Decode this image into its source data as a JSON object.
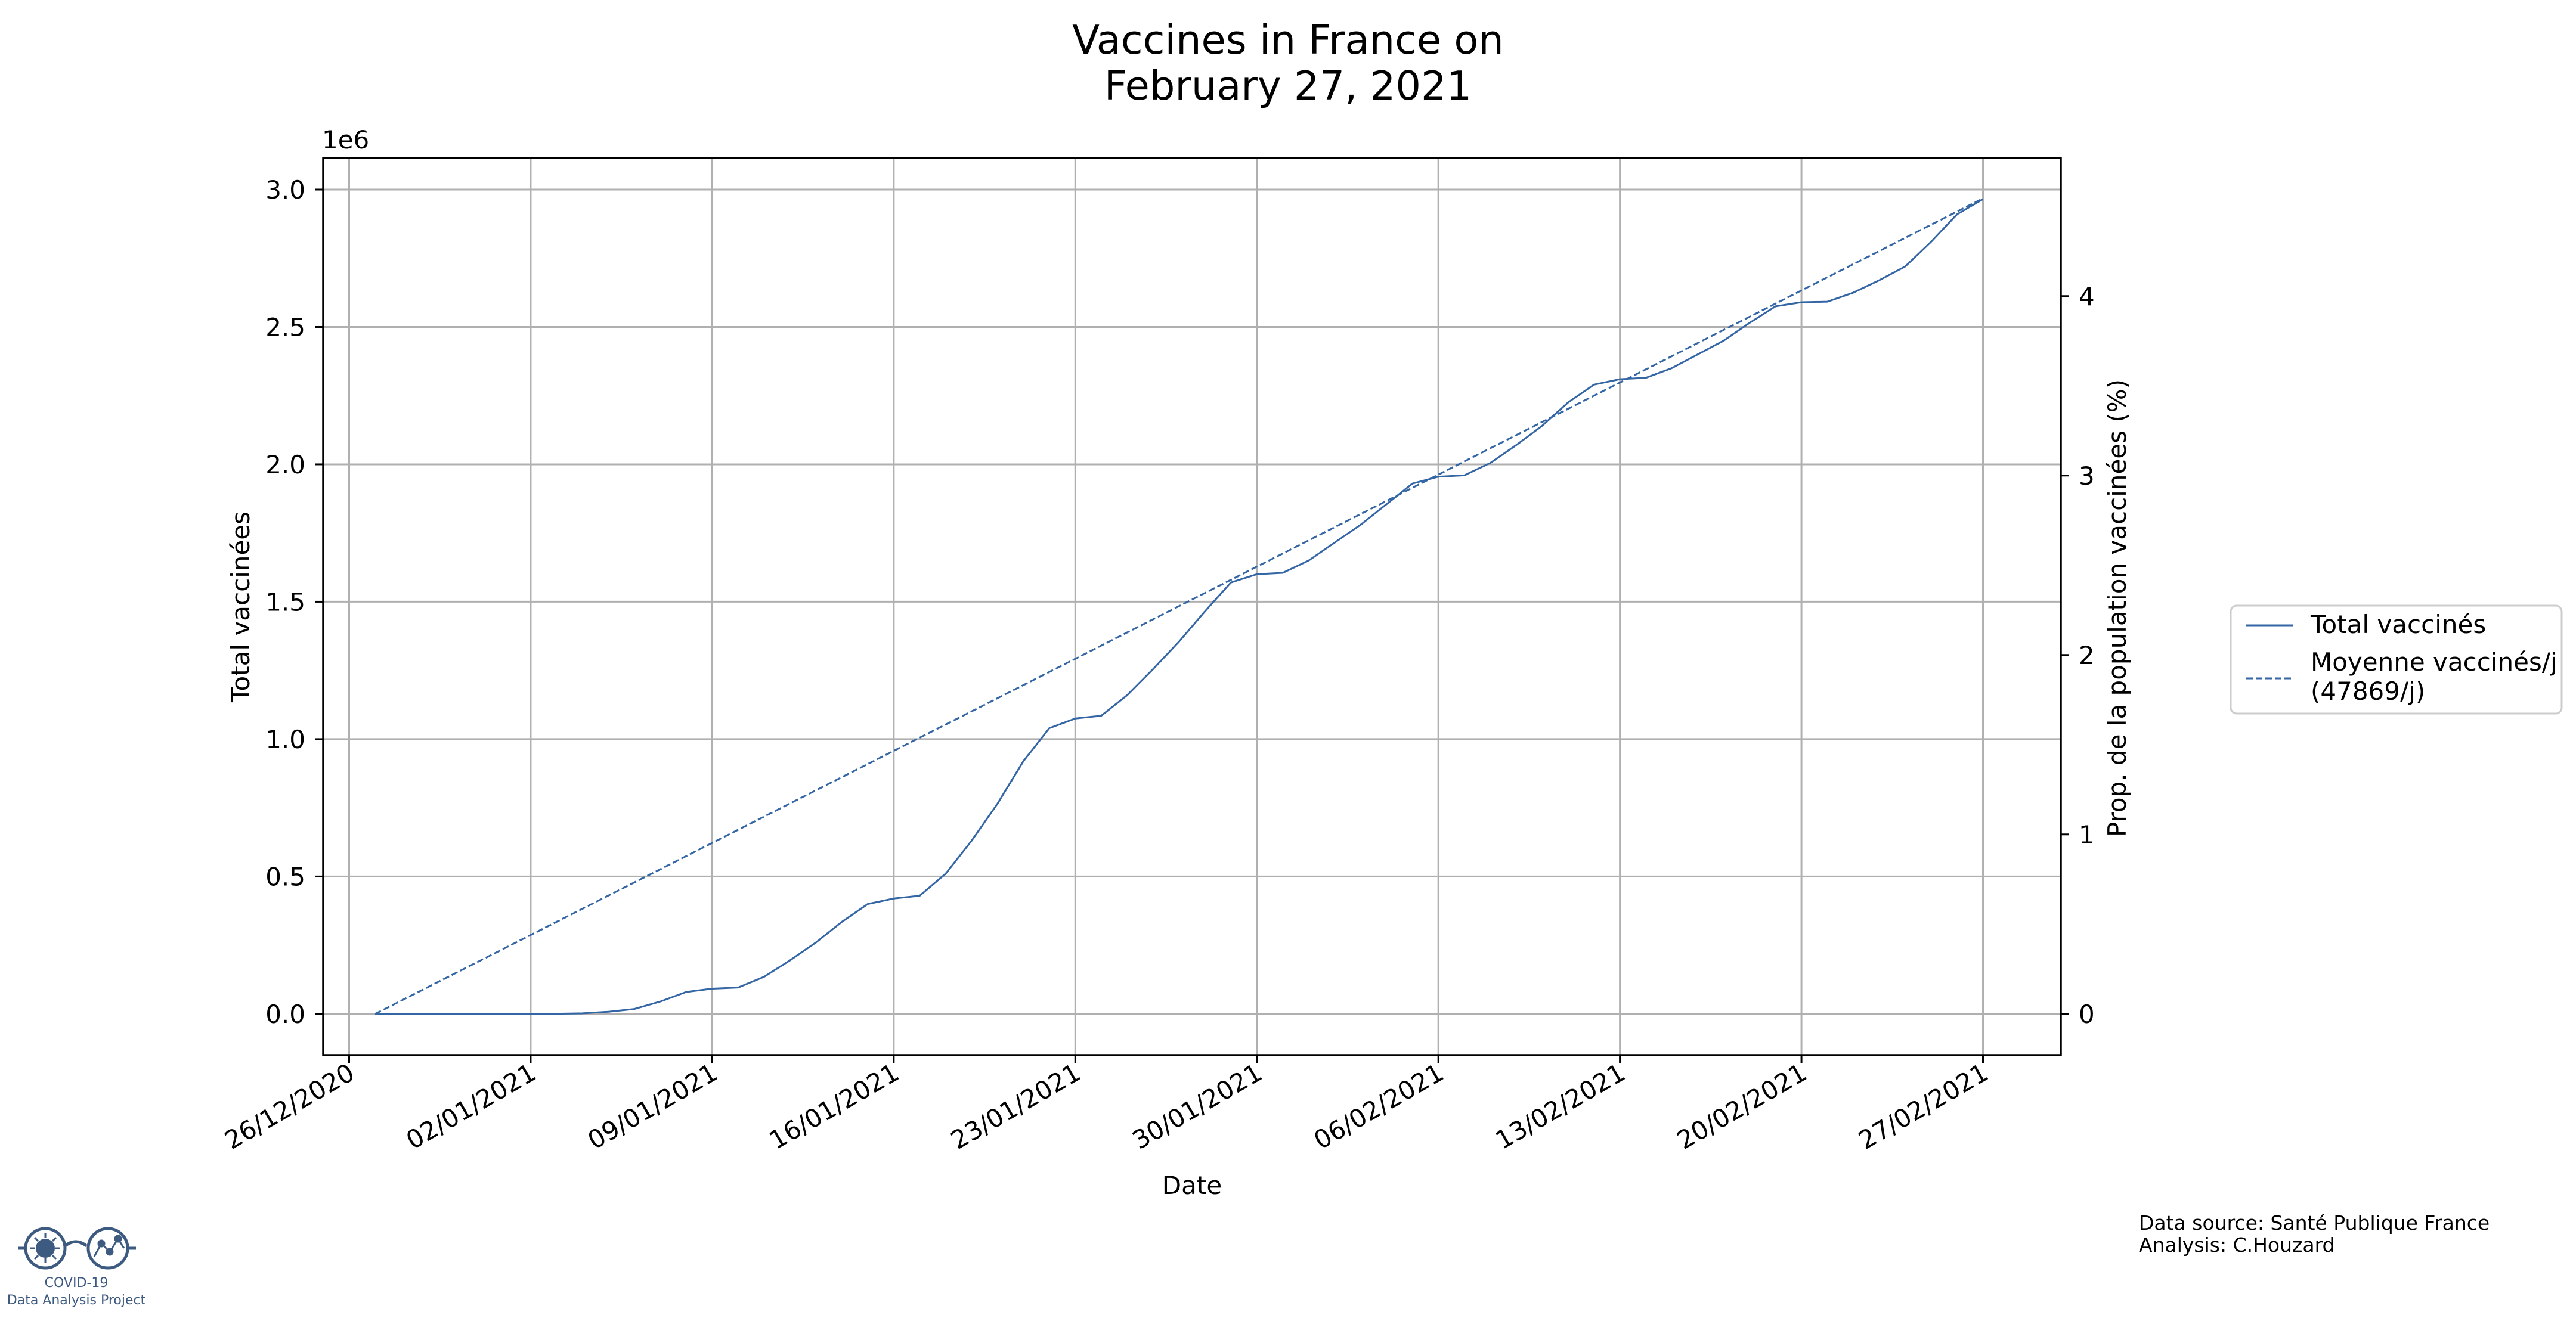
{
  "chart_data": {
    "type": "line",
    "title_lines": [
      "Vaccines in France on",
      "February 27, 2021"
    ],
    "xlabel": "Date",
    "ylabel": "Total vaccinées",
    "y2label": "Prop. de la population vaccinées (%)",
    "y_offset_label": "1e6",
    "xlim": [
      "2020-12-25",
      "2021-03-02"
    ],
    "ylim": [
      -150000,
      3115000
    ],
    "y2lim": [
      -0.23,
      4.77
    ],
    "grid": true,
    "legend_placement": "outside-right",
    "x_ticks": [
      "26/12/2020",
      "02/01/2021",
      "09/01/2021",
      "16/01/2021",
      "23/01/2021",
      "30/01/2021",
      "06/02/2021",
      "13/02/2021",
      "20/02/2021",
      "27/02/2021"
    ],
    "x_tick_dates": [
      "2020-12-26",
      "2021-01-02",
      "2021-01-09",
      "2021-01-16",
      "2021-01-23",
      "2021-01-30",
      "2021-02-06",
      "2021-02-13",
      "2021-02-20",
      "2021-02-27"
    ],
    "y_ticks": [
      0,
      500000,
      1000000,
      1500000,
      2000000,
      2500000,
      3000000
    ],
    "y_tick_labels": [
      "0.0",
      "0.5",
      "1.0",
      "1.5",
      "2.0",
      "2.5",
      "3.0"
    ],
    "y2_ticks": [
      0,
      1,
      2,
      3,
      4
    ],
    "y2_tick_labels": [
      "0",
      "1",
      "2",
      "3",
      "4"
    ],
    "series": [
      {
        "name": "Total vaccinés",
        "style": "solid",
        "color": "#3465a4",
        "dates": [
          "2020-12-27",
          "2020-12-28",
          "2020-12-29",
          "2020-12-30",
          "2020-12-31",
          "2021-01-01",
          "2021-01-02",
          "2021-01-03",
          "2021-01-04",
          "2021-01-05",
          "2021-01-06",
          "2021-01-07",
          "2021-01-08",
          "2021-01-09",
          "2021-01-10",
          "2021-01-11",
          "2021-01-12",
          "2021-01-13",
          "2021-01-14",
          "2021-01-15",
          "2021-01-16",
          "2021-01-17",
          "2021-01-18",
          "2021-01-19",
          "2021-01-20",
          "2021-01-21",
          "2021-01-22",
          "2021-01-23",
          "2021-01-24",
          "2021-01-25",
          "2021-01-26",
          "2021-01-27",
          "2021-01-28",
          "2021-01-29",
          "2021-01-30",
          "2021-01-31",
          "2021-02-01",
          "2021-02-02",
          "2021-02-03",
          "2021-02-04",
          "2021-02-05",
          "2021-02-06",
          "2021-02-07",
          "2021-02-08",
          "2021-02-09",
          "2021-02-10",
          "2021-02-11",
          "2021-02-12",
          "2021-02-13",
          "2021-02-14",
          "2021-02-15",
          "2021-02-16",
          "2021-02-17",
          "2021-02-18",
          "2021-02-19",
          "2021-02-20",
          "2021-02-21",
          "2021-02-22",
          "2021-02-23",
          "2021-02-24",
          "2021-02-25",
          "2021-02-26",
          "2021-02-27"
        ],
        "values": [
          0,
          0,
          0,
          0,
          0,
          0,
          0,
          500,
          2000,
          8000,
          18000,
          45000,
          80000,
          92000,
          96000,
          135000,
          195000,
          260000,
          335000,
          400000,
          420000,
          430000,
          510000,
          630000,
          765000,
          920000,
          1040000,
          1075000,
          1085000,
          1160000,
          1255000,
          1355000,
          1465000,
          1570000,
          1600000,
          1605000,
          1650000,
          1715000,
          1780000,
          1855000,
          1930000,
          1955000,
          1960000,
          2005000,
          2070000,
          2140000,
          2225000,
          2290000,
          2310000,
          2315000,
          2350000,
          2400000,
          2450000,
          2515000,
          2575000,
          2590000,
          2592000,
          2625000,
          2670000,
          2720000,
          2810000,
          2910000,
          2965000
        ]
      },
      {
        "name": "Moyenne vaccinés/j\n(47869/j)",
        "style": "dashed",
        "color": "#3465a4",
        "dates": [
          "2020-12-27",
          "2021-02-27"
        ],
        "values": [
          0,
          2967878
        ]
      }
    ],
    "footer_lines": [
      "Data source: Santé Publique France",
      "Analysis: C.Houzard"
    ]
  },
  "logo": {
    "line1": "COVID-19",
    "line2": "Data Analysis Project"
  }
}
